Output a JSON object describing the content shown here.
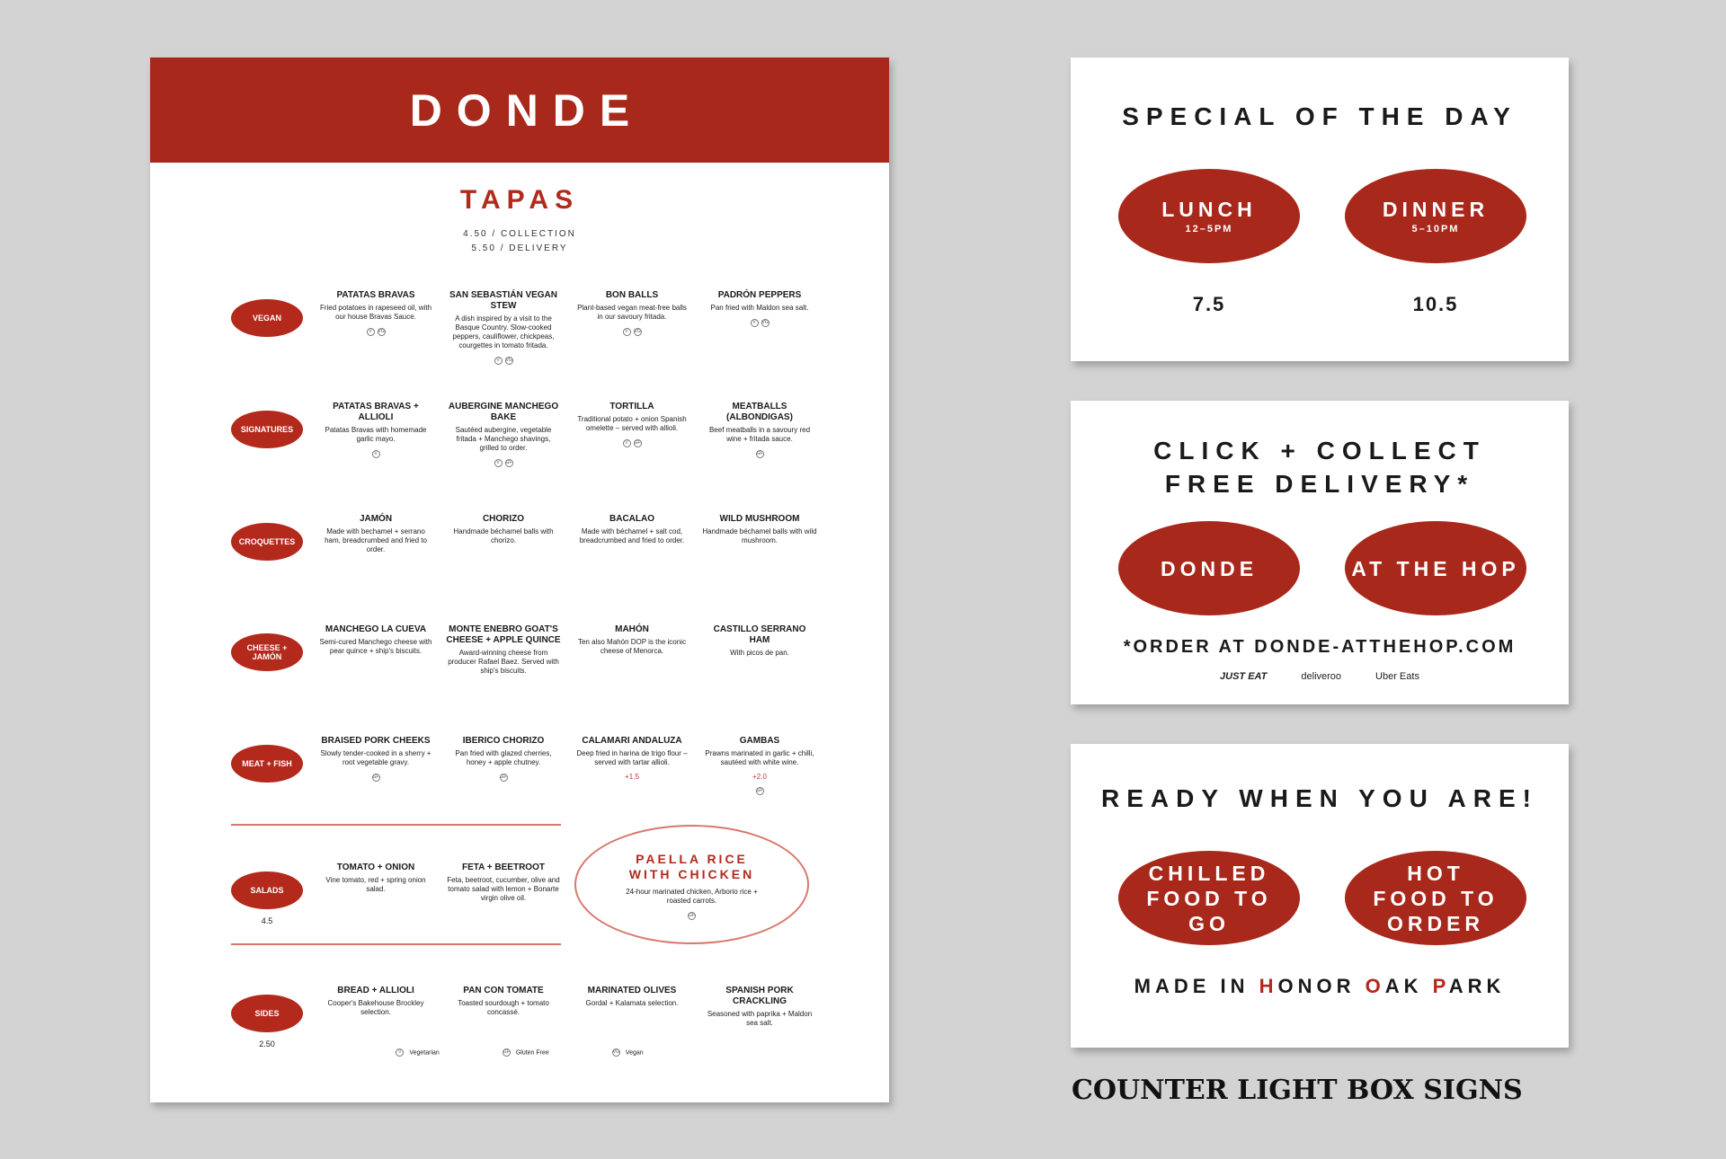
{
  "menu": {
    "brand": "DONDE",
    "section_title": "TAPAS",
    "price_collection": "4.50 / COLLECTION",
    "price_delivery": "5.50 / DELIVERY",
    "accent_color": "#a8281b",
    "sections": [
      {
        "label": "Vegan",
        "price": "",
        "items": [
          {
            "name": "Patatas Bravas",
            "desc": "Fried potatoes in rapeseed oil, with our house Bravas Sauce.",
            "markers": [
              "V",
              "VG"
            ]
          },
          {
            "name": "San Sebastián Vegan Stew",
            "desc": "A dish inspired by a visit to the Basque Country. Slow-cooked peppers, cauliflower, chickpeas, courgettes in tomato fritada.",
            "markers": [
              "V",
              "VG"
            ]
          },
          {
            "name": "Bon Balls",
            "desc": "Plant-based vegan meat-free balls in our savoury fritada.",
            "markers": [
              "V",
              "VG"
            ]
          },
          {
            "name": "Padrón Peppers",
            "desc": "Pan fried with Maldon sea salt.",
            "markers": [
              "V",
              "VG"
            ]
          }
        ]
      },
      {
        "label": "Signatures",
        "price": "",
        "items": [
          {
            "name": "Patatas Bravas + Allioli",
            "desc": "Patatas Bravas with homemade garlic mayo.",
            "markers": [
              "V"
            ]
          },
          {
            "name": "Aubergine Manchego Bake",
            "desc": "Sautéed aubergine, vegetable fritada + Manchego shavings, grilled to order.",
            "markers": [
              "V",
              "GF"
            ]
          },
          {
            "name": "Tortilla",
            "desc": "Traditional potato + onion Spanish omelette – served with allioli.",
            "markers": [
              "V",
              "GF"
            ]
          },
          {
            "name": "Meatballs (Albondigas)",
            "desc": "Beef meatballs in a savoury red wine + fritada sauce.",
            "markers": [
              "GF"
            ]
          }
        ]
      },
      {
        "label": "Croquettes",
        "price": "",
        "items": [
          {
            "name": "Jamón",
            "desc": "Made with bechamel + serrano ham, breadcrumbed and fried to order.",
            "markers": []
          },
          {
            "name": "Chorizo",
            "desc": "Handmade béchamel balls with chorizo.",
            "markers": []
          },
          {
            "name": "Bacalao",
            "desc": "Made with béchamel + salt cod, breadcrumbed and fried to order.",
            "markers": []
          },
          {
            "name": "Wild Mushroom",
            "desc": "Handmade béchamel balls with wild mushroom.",
            "markers": []
          }
        ]
      },
      {
        "label": "Cheese + Jamón",
        "price": "",
        "items": [
          {
            "name": "Manchego La Cueva",
            "desc": "Semi-cured Manchego cheese with pear quince + ship's biscuits.",
            "markers": []
          },
          {
            "name": "Monte Enebro Goat's Cheese + Apple Quince",
            "desc": "Award-winning cheese from producer Rafael Baez. Served with ship's biscuits.",
            "markers": []
          },
          {
            "name": "Mahón",
            "desc": "Ten also Mahón DOP is the iconic cheese of Menorca.",
            "markers": []
          },
          {
            "name": "Castillo Serrano Ham",
            "desc": "With picos de pan.",
            "markers": []
          }
        ]
      },
      {
        "label": "Meat + Fish",
        "price": "",
        "items": [
          {
            "name": "Braised Pork Cheeks",
            "desc": "Slowly tender-cooked in a sherry + root vegetable gravy.",
            "markers": [
              "GF"
            ]
          },
          {
            "name": "Iberico Chorizo",
            "desc": "Pan fried with glazed cherries, honey + apple chutney.",
            "markers": [
              "GF"
            ]
          },
          {
            "name": "Calamari Andaluza",
            "desc": "Deep fried in harina de trigo flour – served with tartar allioli.",
            "extra": "+1.5",
            "markers": []
          },
          {
            "name": "Gambas",
            "desc": "Prawns marinated in garlic + chilli, sautéed with white wine.",
            "extra": "+2.0",
            "markers": [
              "GF"
            ]
          }
        ]
      },
      {
        "label": "Salads",
        "price": "4.5",
        "items": [
          {
            "name": "Tomato + Onion",
            "desc": "Vine tomato, red + spring onion salad.",
            "markers": []
          },
          {
            "name": "Feta + Beetroot",
            "desc": "Feta, beetroot, cucumber, olive and tomato salad with lemon + Bonarte virgin olive oil.",
            "markers": []
          }
        ]
      },
      {
        "label": "Sides",
        "price": "2.50",
        "items": [
          {
            "name": "Bread + Allioli",
            "desc": "Cooper's Bakehouse Brockley selection.",
            "markers": []
          },
          {
            "name": "Pan con Tomate",
            "desc": "Toasted sourdough + tomato concassé.",
            "markers": []
          },
          {
            "name": "Marinated Olives",
            "desc": "Gordal + Kalamata selection.",
            "markers": []
          },
          {
            "name": "Spanish Pork Crackling",
            "desc": "Seasoned with paprika + Maldon sea salt.",
            "markers": []
          }
        ]
      }
    ],
    "special": {
      "name": "PAELLA RICE WITH CHICKEN",
      "desc": "24-hour marinated chicken, Arborio rice + roasted carrots.",
      "markers": [
        "GF"
      ]
    },
    "legend": [
      {
        "code": "V",
        "label": "Vegetarian"
      },
      {
        "code": "GF",
        "label": "Gluten Free"
      },
      {
        "code": "VG",
        "label": "Vegan"
      }
    ]
  },
  "signs": {
    "special": {
      "title": "SPECIAL OF THE DAY",
      "lunch": {
        "label": "LUNCH",
        "time": "12–5PM",
        "price": "7.5"
      },
      "dinner": {
        "label": "DINNER",
        "time": "5–10PM",
        "price": "10.5"
      }
    },
    "collect": {
      "title_line1": "CLICK + COLLECT",
      "title_line2": "FREE DELIVERY*",
      "left": "DONDE",
      "right": "AT THE HOP",
      "order_line": "*ORDER AT DONDE-ATTHEHOP.COM",
      "partners": [
        "JUST EAT",
        "deliveroo",
        "Uber Eats"
      ]
    },
    "ready": {
      "title": "READY WHEN YOU ARE!",
      "left": "CHILLED FOOD TO GO",
      "right": "HOT FOOD TO ORDER",
      "made_in": [
        {
          "t": "MADE IN ",
          "red": false
        },
        {
          "t": "H",
          "red": true
        },
        {
          "t": "ONOR ",
          "red": false
        },
        {
          "t": "O",
          "red": true
        },
        {
          "t": "AK ",
          "red": false
        },
        {
          "t": "P",
          "red": true
        },
        {
          "t": "ARK",
          "red": false
        }
      ]
    }
  },
  "caption": "COUNTER LIGHT BOX SIGNS"
}
